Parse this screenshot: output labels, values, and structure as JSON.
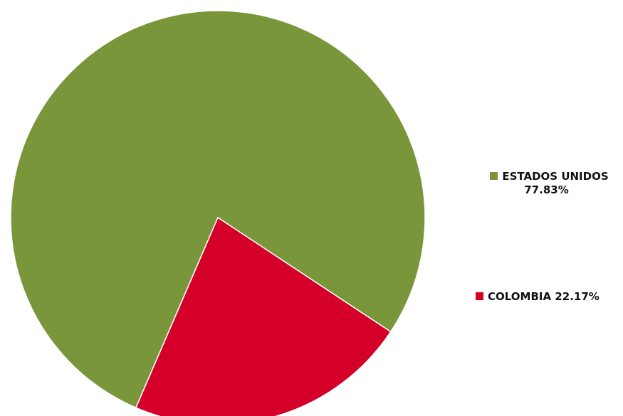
{
  "chart_data": {
    "type": "pie",
    "title": "",
    "slices": [
      {
        "label": "ESTADOS UNIDOS",
        "value": 77.83,
        "value_label": "77.83%",
        "color": "#7a963b"
      },
      {
        "label": "COLOMBIA",
        "value": 22.17,
        "value_label": "22.17%",
        "color": "#d4002a"
      }
    ],
    "legend_position": "right",
    "slice_border_color": "#ffffff"
  }
}
